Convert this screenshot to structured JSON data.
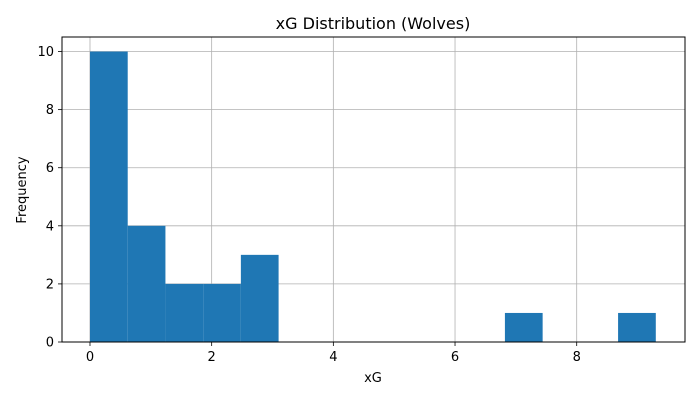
{
  "chart_data": {
    "type": "bar",
    "subtype": "histogram",
    "title": "xG Distribution (Wolves)",
    "xlabel": "xG",
    "ylabel": "Frequency",
    "xlim": [
      -0.46,
      9.78
    ],
    "ylim": [
      0,
      10.5
    ],
    "xticks": [
      0,
      2,
      4,
      6,
      8
    ],
    "yticks": [
      0,
      2,
      4,
      6,
      8,
      10
    ],
    "grid": true,
    "bar_color": "#1f77b4",
    "bins": [
      {
        "x0": 0.0,
        "x1": 0.62,
        "count": 10
      },
      {
        "x0": 0.62,
        "x1": 1.24,
        "count": 4
      },
      {
        "x0": 1.24,
        "x1": 1.86,
        "count": 2
      },
      {
        "x0": 1.86,
        "x1": 2.48,
        "count": 2
      },
      {
        "x0": 2.48,
        "x1": 3.1,
        "count": 3
      },
      {
        "x0": 3.1,
        "x1": 3.72,
        "count": 0
      },
      {
        "x0": 3.72,
        "x1": 4.34,
        "count": 0
      },
      {
        "x0": 4.34,
        "x1": 4.96,
        "count": 0
      },
      {
        "x0": 4.96,
        "x1": 5.58,
        "count": 0
      },
      {
        "x0": 5.58,
        "x1": 6.2,
        "count": 0
      },
      {
        "x0": 6.2,
        "x1": 6.82,
        "count": 0
      },
      {
        "x0": 6.82,
        "x1": 7.44,
        "count": 1
      },
      {
        "x0": 7.44,
        "x1": 8.06,
        "count": 0
      },
      {
        "x0": 8.06,
        "x1": 8.68,
        "count": 0
      },
      {
        "x0": 8.68,
        "x1": 9.3,
        "count": 1
      }
    ]
  }
}
